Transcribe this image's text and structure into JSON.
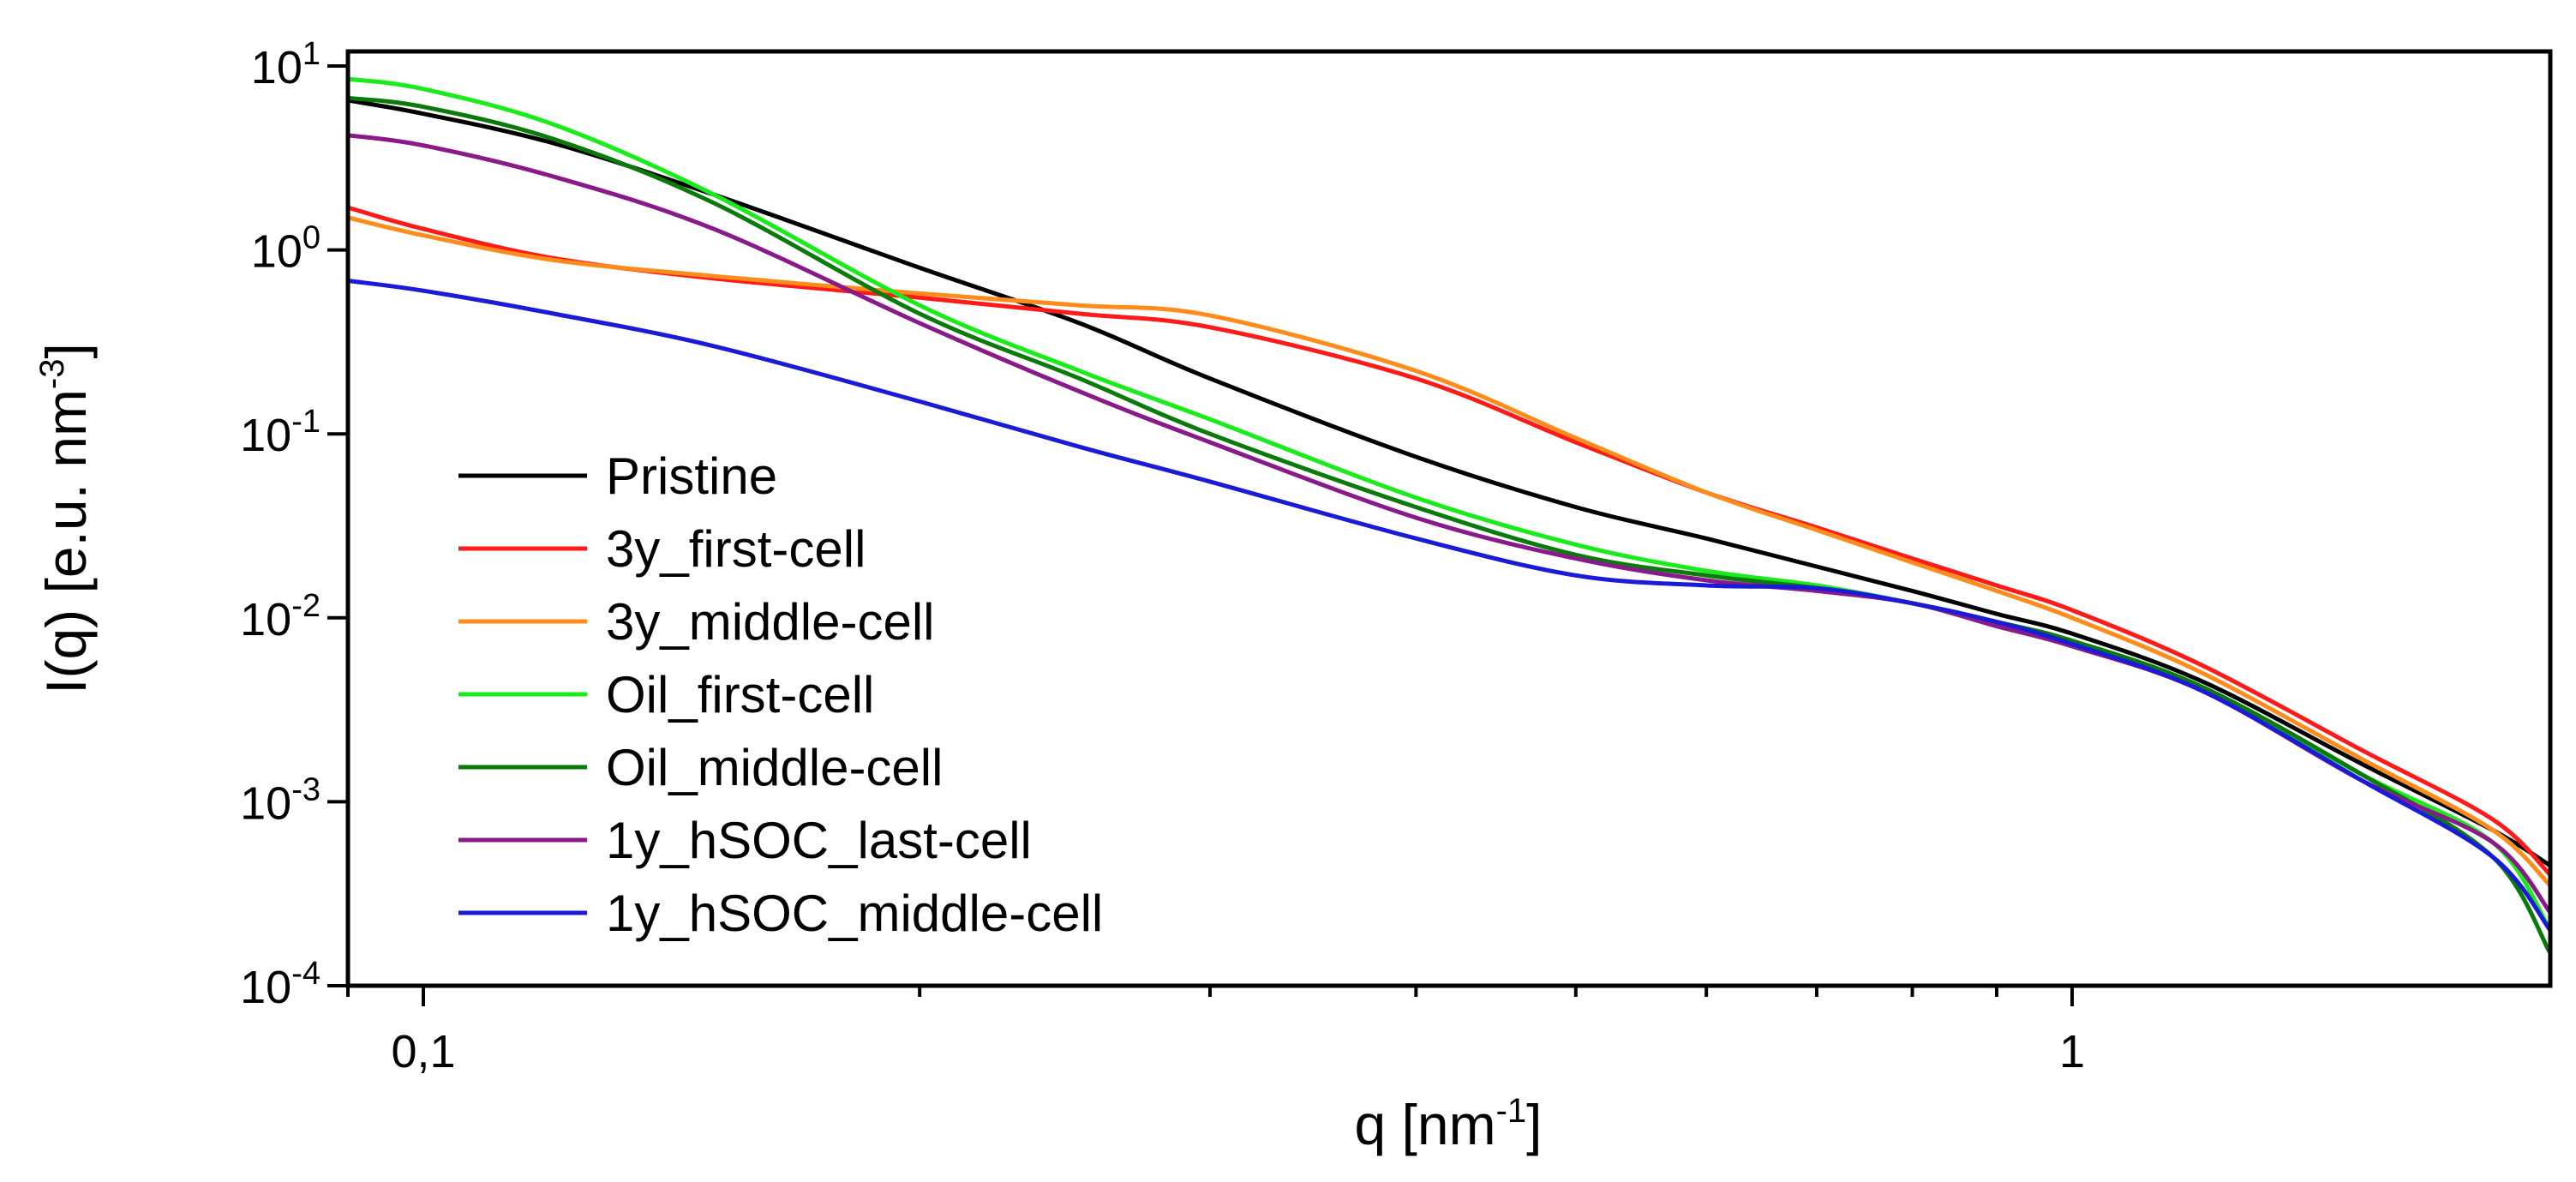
{
  "chart_data": {
    "type": "line",
    "xscale": "log",
    "yscale": "log",
    "xlim": [
      0.09,
      1.95
    ],
    "ylim": [
      0.0001,
      12
    ],
    "xlabel": {
      "base": "q [nm",
      "sup": "-1",
      "tail": "]"
    },
    "ylabel": {
      "base": "I(q) [e.u. nm",
      "sup": "-3",
      "tail": "]"
    },
    "x_tick_labels": [
      {
        "value": 0.1,
        "label": "0,1"
      },
      {
        "value": 1,
        "label": "1"
      }
    ],
    "y_tick_labels": [
      {
        "value": 10,
        "base": "10",
        "exp": "1"
      },
      {
        "value": 1,
        "base": "10",
        "exp": "0"
      },
      {
        "value": 0.1,
        "base": "10",
        "exp": "-1"
      },
      {
        "value": 0.01,
        "base": "10",
        "exp": "-2"
      },
      {
        "value": 0.001,
        "base": "10",
        "exp": "-3"
      },
      {
        "value": 0.0001,
        "base": "10",
        "exp": "-4"
      }
    ],
    "legend_position": "left",
    "series": [
      {
        "name": "Pristine",
        "color": "#000000",
        "x": [
          0.09,
          0.1,
          0.12,
          0.15,
          0.2,
          0.25,
          0.3,
          0.4,
          0.5,
          0.6,
          0.7,
          0.8,
          0.9,
          1.0,
          1.2,
          1.5,
          1.8,
          1.95
        ],
        "y": [
          6.5,
          5.5,
          3.8,
          2.0,
          0.8,
          0.4,
          0.2,
          0.075,
          0.04,
          0.027,
          0.019,
          0.014,
          0.0105,
          0.0082,
          0.0045,
          0.0016,
          0.0007,
          0.00045
        ]
      },
      {
        "name": "3y_first-cell",
        "color": "#ff1a1a",
        "x": [
          0.09,
          0.1,
          0.12,
          0.15,
          0.2,
          0.25,
          0.3,
          0.4,
          0.5,
          0.6,
          0.7,
          0.8,
          0.9,
          1.0,
          1.2,
          1.5,
          1.8,
          1.95
        ],
        "y": [
          1.7,
          1.3,
          0.9,
          0.7,
          0.55,
          0.45,
          0.38,
          0.2,
          0.09,
          0.048,
          0.031,
          0.021,
          0.015,
          0.011,
          0.0055,
          0.0019,
          0.0008,
          0.0004
        ]
      },
      {
        "name": "3y_middle-cell",
        "color": "#ff8c1a",
        "x": [
          0.09,
          0.1,
          0.12,
          0.15,
          0.2,
          0.25,
          0.3,
          0.4,
          0.5,
          0.6,
          0.7,
          0.8,
          0.9,
          1.0,
          1.2,
          1.5,
          1.8,
          1.95
        ],
        "y": [
          1.5,
          1.2,
          0.88,
          0.72,
          0.58,
          0.5,
          0.44,
          0.22,
          0.095,
          0.048,
          0.03,
          0.02,
          0.014,
          0.01,
          0.005,
          0.0017,
          0.0007,
          0.00035
        ]
      },
      {
        "name": "Oil_first-cell",
        "color": "#1aeb1a",
        "x": [
          0.09,
          0.1,
          0.12,
          0.15,
          0.2,
          0.25,
          0.3,
          0.4,
          0.5,
          0.6,
          0.7,
          0.8,
          0.9,
          1.0,
          1.2,
          1.5,
          1.8,
          1.95
        ],
        "y": [
          8.5,
          7.5,
          4.8,
          2.0,
          0.5,
          0.22,
          0.12,
          0.045,
          0.025,
          0.018,
          0.015,
          0.012,
          0.0095,
          0.0075,
          0.0042,
          0.0014,
          0.0006,
          0.0002
        ]
      },
      {
        "name": "Oil_middle-cell",
        "color": "#0a7a0a",
        "x": [
          0.09,
          0.1,
          0.12,
          0.15,
          0.2,
          0.25,
          0.3,
          0.4,
          0.5,
          0.6,
          0.7,
          0.8,
          0.9,
          1.0,
          1.2,
          1.5,
          1.8,
          1.95
        ],
        "y": [
          6.7,
          6.0,
          4.0,
          1.8,
          0.45,
          0.2,
          0.1,
          0.04,
          0.022,
          0.017,
          0.0145,
          0.012,
          0.0095,
          0.0075,
          0.0042,
          0.0014,
          0.0005,
          0.00015
        ]
      },
      {
        "name": "1y_hSOC_last-cell",
        "color": "#8a1a8a",
        "x": [
          0.09,
          0.1,
          0.12,
          0.15,
          0.2,
          0.25,
          0.3,
          0.4,
          0.5,
          0.6,
          0.7,
          0.8,
          0.9,
          1.0,
          1.2,
          1.5,
          1.8,
          1.95
        ],
        "y": [
          4.2,
          3.7,
          2.5,
          1.3,
          0.4,
          0.17,
          0.09,
          0.035,
          0.021,
          0.016,
          0.014,
          0.012,
          0.009,
          0.007,
          0.004,
          0.0013,
          0.0006,
          0.00025
        ]
      },
      {
        "name": "1y_hSOC_middle-cell",
        "color": "#1a1ad9",
        "x": [
          0.09,
          0.1,
          0.12,
          0.15,
          0.2,
          0.25,
          0.3,
          0.4,
          0.5,
          0.6,
          0.7,
          0.8,
          0.9,
          1.0,
          1.2,
          1.5,
          1.8,
          1.95
        ],
        "y": [
          0.68,
          0.6,
          0.45,
          0.3,
          0.15,
          0.085,
          0.055,
          0.027,
          0.017,
          0.015,
          0.0145,
          0.012,
          0.0095,
          0.0072,
          0.004,
          0.0013,
          0.0005,
          0.0002
        ]
      }
    ]
  }
}
